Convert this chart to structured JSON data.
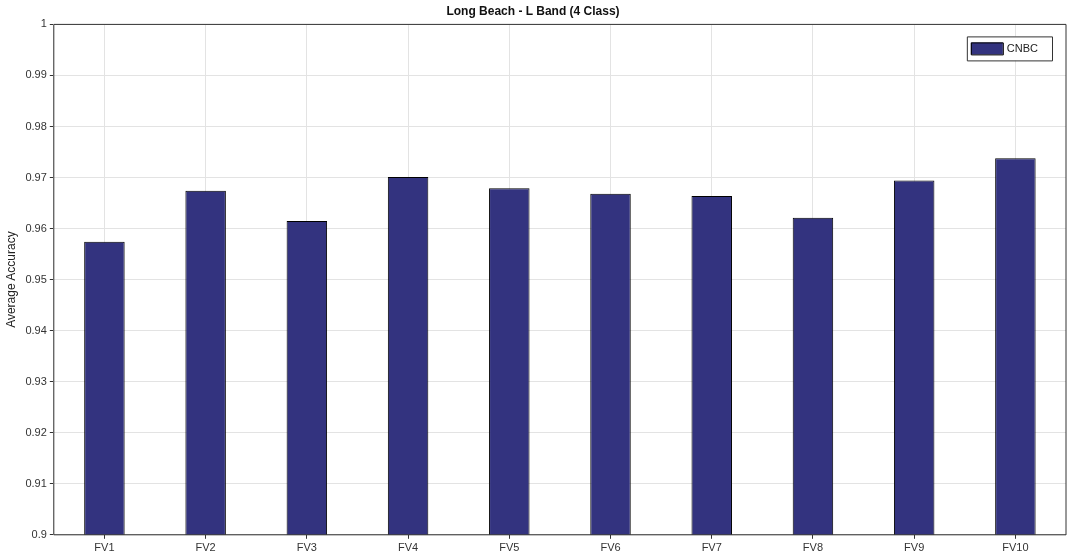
{
  "chart_data": {
    "type": "bar",
    "title": "Long Beach - L Band (4 Class)",
    "ylabel": "Average Accuracy",
    "categories": [
      "FV1",
      "FV2",
      "FV3",
      "FV4",
      "FV5",
      "FV6",
      "FV7",
      "FV8",
      "FV9",
      "FV10"
    ],
    "series": [
      {
        "name": "CNBC",
        "color": "#33337f",
        "values": [
          0.9574,
          0.9674,
          0.9615,
          0.9701,
          0.9679,
          0.9668,
          0.9664,
          0.9621,
          0.9694,
          0.9738
        ]
      }
    ],
    "ylim": [
      0.9,
      1
    ],
    "yticks": [
      0.9,
      0.91,
      0.92,
      0.93,
      0.94,
      0.95,
      0.96,
      0.97,
      0.98,
      0.99,
      1
    ],
    "grid": true,
    "legend": "top right"
  }
}
